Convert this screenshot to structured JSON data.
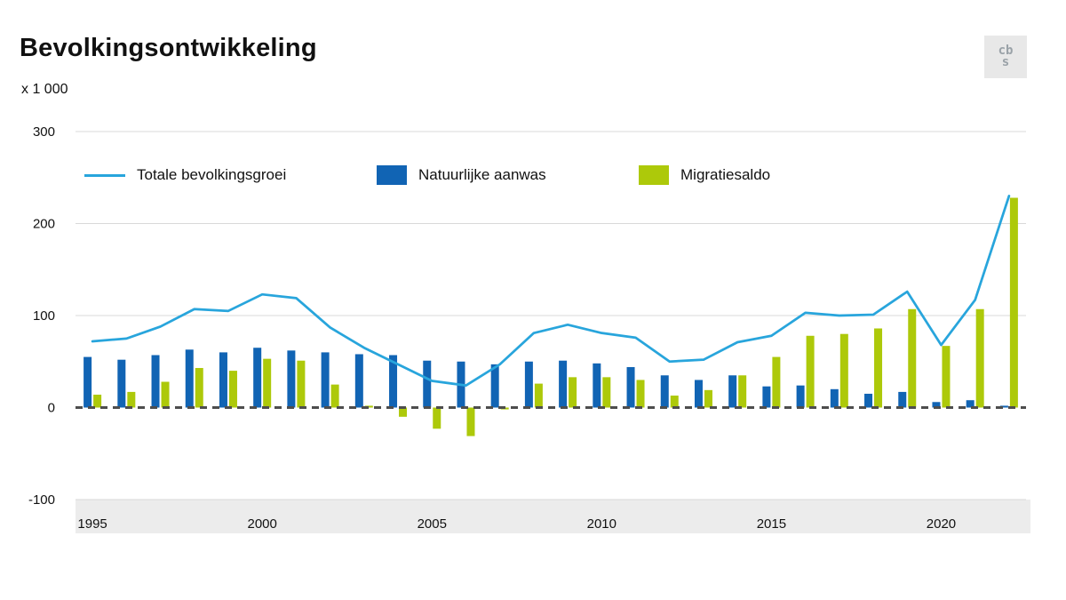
{
  "title": "Bevolkingsontwikkeling",
  "unit_label": "x 1 000",
  "logo": {
    "line1": "cb",
    "line2": "s"
  },
  "colors": {
    "line": "#28a5dc",
    "natural": "#1164b4",
    "migration": "#adc90a",
    "grid": "#d9d9d9",
    "zero_line": "#4d4d4d",
    "axis_band": "#ececec",
    "text": "#111111"
  },
  "legend": [
    {
      "label": "Totale bevolkingsgroei"
    },
    {
      "label": "Natuurlijke aanwas"
    },
    {
      "label": "Migratiesaldo"
    }
  ],
  "chart_data": {
    "type": "bar+line",
    "x": [
      1995,
      1996,
      1997,
      1998,
      1999,
      2000,
      2001,
      2002,
      2003,
      2004,
      2005,
      2006,
      2007,
      2008,
      2009,
      2010,
      2011,
      2012,
      2013,
      2014,
      2015,
      2016,
      2017,
      2018,
      2019,
      2020,
      2021,
      2022
    ],
    "series": [
      {
        "name": "Totale bevolkingsgroei",
        "type": "line",
        "color": "#28a5dc",
        "values": [
          72,
          75,
          88,
          107,
          105,
          123,
          119,
          87,
          65,
          47,
          29,
          24,
          47,
          81,
          90,
          81,
          76,
          50,
          52,
          71,
          78,
          103,
          100,
          101,
          126,
          68,
          117,
          230
        ]
      },
      {
        "name": "Natuurlijke aanwas",
        "type": "bar",
        "color": "#1164b4",
        "values": [
          55,
          52,
          57,
          63,
          60,
          65,
          62,
          60,
          58,
          57,
          51,
          50,
          47,
          50,
          51,
          48,
          44,
          35,
          30,
          35,
          23,
          24,
          20,
          15,
          17,
          6,
          8,
          2
        ]
      },
      {
        "name": "Migratiesaldo",
        "type": "bar",
        "color": "#adc90a",
        "values": [
          14,
          17,
          28,
          43,
          40,
          53,
          51,
          25,
          2,
          -10,
          -23,
          -31,
          -2,
          26,
          33,
          33,
          30,
          13,
          19,
          35,
          55,
          78,
          80,
          86,
          107,
          67,
          107,
          228
        ]
      }
    ],
    "ylim": [
      -100,
      300
    ],
    "yticks": [
      300,
      200,
      100,
      0,
      -100
    ],
    "xticks": [
      1995,
      2000,
      2005,
      2010,
      2015,
      2020
    ],
    "grid": true,
    "legend_position": "top-inside"
  }
}
